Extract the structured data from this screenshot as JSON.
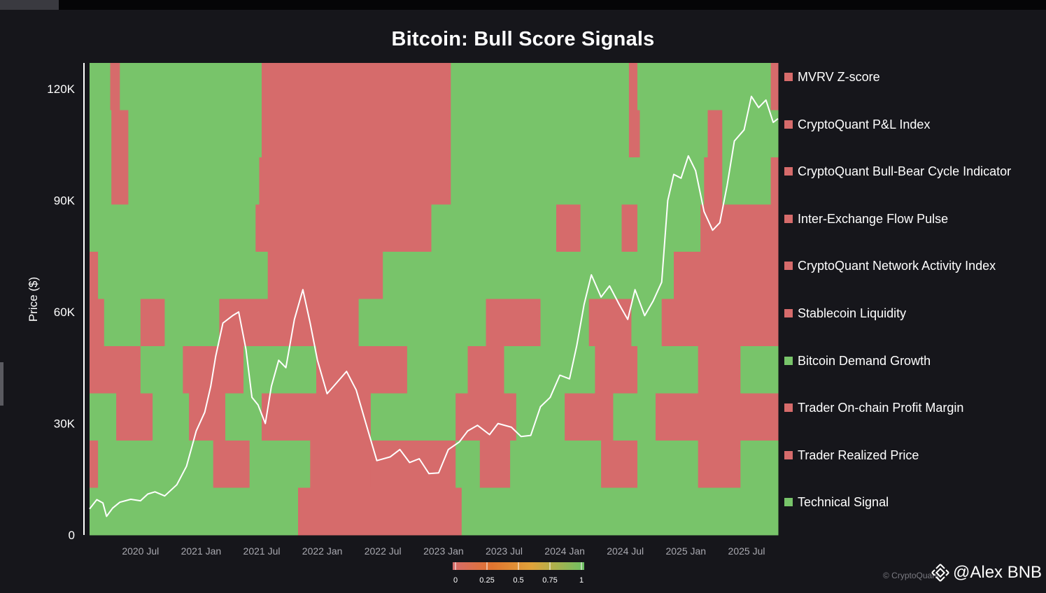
{
  "chart_data": {
    "type": "heatmap",
    "title": "Bitcoin: Bull Score Signals",
    "ylabel": "Price ($)",
    "xlabel": "",
    "y_ticks": [
      "0",
      "30K",
      "60K",
      "90K",
      "120K"
    ],
    "y_tick_values": [
      0,
      30000,
      60000,
      90000,
      120000
    ],
    "ylim": [
      0,
      127000
    ],
    "x_range": [
      2020.08,
      2025.76
    ],
    "x_ticks": [
      "2020 Jul",
      "2021 Jan",
      "2021 Jul",
      "2022 Jan",
      "2022 Jul",
      "2023 Jan",
      "2023 Jul",
      "2024 Jan",
      "2024 Jul",
      "2025 Jan",
      "2025 Jul"
    ],
    "x_tick_values": [
      2020.5,
      2021.0,
      2021.5,
      2022.0,
      2022.5,
      2023.0,
      2023.5,
      2024.0,
      2024.5,
      2025.0,
      2025.5
    ],
    "colorscale": {
      "ticks": [
        "0",
        "0.25",
        "0.5",
        "0.75",
        "1"
      ],
      "stops": [
        "#d66b6b",
        "#e0742f",
        "#e0a33a",
        "#6cc063"
      ]
    },
    "colors": {
      "bullish": "#78c46a",
      "bearish": "#d66b6b",
      "price_line": "#ffffff"
    },
    "series": [
      {
        "name": "MVRV Z-score",
        "state": 0,
        "segments": [
          [
            2020.08,
            2020.25,
            1
          ],
          [
            2020.25,
            2020.33,
            0
          ],
          [
            2020.33,
            2021.5,
            1
          ],
          [
            2021.5,
            2021.85,
            0
          ],
          [
            2021.85,
            2023.06,
            0
          ],
          [
            2023.06,
            2024.53,
            1
          ],
          [
            2024.53,
            2024.6,
            0
          ],
          [
            2024.6,
            2025.7,
            1
          ],
          [
            2025.7,
            2025.76,
            0
          ]
        ]
      },
      {
        "name": "CryptoQuant P&L Index",
        "state": 0,
        "segments": [
          [
            2020.08,
            2020.26,
            1
          ],
          [
            2020.26,
            2020.4,
            0
          ],
          [
            2020.4,
            2021.5,
            1
          ],
          [
            2021.5,
            2021.9,
            0
          ],
          [
            2021.9,
            2023.06,
            0
          ],
          [
            2023.06,
            2024.53,
            1
          ],
          [
            2024.53,
            2024.62,
            0
          ],
          [
            2024.62,
            2025.18,
            1
          ],
          [
            2025.18,
            2025.3,
            0
          ],
          [
            2025.3,
            2025.76,
            1
          ]
        ]
      },
      {
        "name": "CryptoQuant Bull-Bear Cycle Indicator",
        "state": 0,
        "segments": [
          [
            2020.08,
            2020.26,
            1
          ],
          [
            2020.26,
            2020.4,
            0
          ],
          [
            2020.4,
            2021.48,
            1
          ],
          [
            2021.48,
            2021.78,
            0
          ],
          [
            2021.78,
            2023.06,
            0
          ],
          [
            2023.06,
            2024.6,
            1
          ],
          [
            2024.6,
            2025.15,
            1
          ],
          [
            2025.15,
            2025.3,
            0
          ],
          [
            2025.3,
            2025.7,
            1
          ],
          [
            2025.7,
            2025.76,
            0
          ]
        ]
      },
      {
        "name": "Inter-Exchange Flow Pulse",
        "state": 0,
        "segments": [
          [
            2020.08,
            2021.45,
            1
          ],
          [
            2021.45,
            2021.7,
            0
          ],
          [
            2021.7,
            2022.9,
            0
          ],
          [
            2022.9,
            2023.93,
            1
          ],
          [
            2023.93,
            2024.13,
            0
          ],
          [
            2024.13,
            2024.47,
            1
          ],
          [
            2024.47,
            2024.6,
            0
          ],
          [
            2024.6,
            2025.12,
            1
          ],
          [
            2025.12,
            2025.76,
            0
          ]
        ]
      },
      {
        "name": "CryptoQuant Network Activity Index",
        "state": 0,
        "segments": [
          [
            2020.08,
            2020.15,
            0
          ],
          [
            2020.15,
            2020.4,
            1
          ],
          [
            2020.4,
            2021.55,
            1
          ],
          [
            2021.55,
            2021.8,
            0
          ],
          [
            2021.8,
            2022.5,
            0
          ],
          [
            2022.5,
            2023.3,
            1
          ],
          [
            2023.3,
            2024.1,
            1
          ],
          [
            2024.1,
            2024.45,
            1
          ],
          [
            2024.45,
            2024.9,
            1
          ],
          [
            2024.9,
            2025.76,
            0
          ]
        ]
      },
      {
        "name": "Stablecoin Liquidity",
        "state": 0,
        "segments": [
          [
            2020.08,
            2020.2,
            0
          ],
          [
            2020.2,
            2020.5,
            1
          ],
          [
            2020.5,
            2020.7,
            0
          ],
          [
            2020.7,
            2021.15,
            1
          ],
          [
            2021.15,
            2021.5,
            0
          ],
          [
            2021.5,
            2022.3,
            0
          ],
          [
            2022.3,
            2022.95,
            1
          ],
          [
            2022.95,
            2023.35,
            1
          ],
          [
            2023.35,
            2023.8,
            0
          ],
          [
            2023.8,
            2024.2,
            1
          ],
          [
            2024.2,
            2024.55,
            0
          ],
          [
            2024.55,
            2024.8,
            1
          ],
          [
            2024.8,
            2025.0,
            0
          ],
          [
            2025.0,
            2025.76,
            0
          ]
        ]
      },
      {
        "name": "Bitcoin Demand Growth",
        "state": 1,
        "segments": [
          [
            2020.08,
            2020.5,
            0
          ],
          [
            2020.5,
            2020.85,
            1
          ],
          [
            2020.85,
            2021.35,
            0
          ],
          [
            2021.35,
            2021.95,
            1
          ],
          [
            2021.95,
            2022.7,
            0
          ],
          [
            2022.7,
            2023.2,
            1
          ],
          [
            2023.2,
            2023.5,
            0
          ],
          [
            2023.5,
            2024.25,
            1
          ],
          [
            2024.25,
            2024.6,
            0
          ],
          [
            2024.6,
            2025.1,
            1
          ],
          [
            2025.1,
            2025.45,
            0
          ],
          [
            2025.45,
            2025.76,
            1
          ]
        ]
      },
      {
        "name": "Trader On-chain Profit Margin",
        "state": 0,
        "segments": [
          [
            2020.08,
            2020.3,
            1
          ],
          [
            2020.3,
            2020.6,
            0
          ],
          [
            2020.6,
            2020.9,
            1
          ],
          [
            2020.9,
            2021.2,
            0
          ],
          [
            2021.2,
            2021.5,
            1
          ],
          [
            2021.5,
            2021.85,
            0
          ],
          [
            2021.85,
            2022.4,
            0
          ],
          [
            2022.4,
            2023.1,
            1
          ],
          [
            2023.1,
            2023.6,
            0
          ],
          [
            2023.6,
            2024.0,
            1
          ],
          [
            2024.0,
            2024.4,
            0
          ],
          [
            2024.4,
            2024.75,
            1
          ],
          [
            2024.75,
            2025.0,
            0
          ],
          [
            2025.0,
            2025.3,
            0
          ],
          [
            2025.3,
            2025.76,
            0
          ]
        ]
      },
      {
        "name": "Trader Realized Price",
        "state": 0,
        "segments": [
          [
            2020.08,
            2020.15,
            0
          ],
          [
            2020.15,
            2021.1,
            1
          ],
          [
            2021.1,
            2021.4,
            0
          ],
          [
            2021.4,
            2021.9,
            1
          ],
          [
            2021.9,
            2022.4,
            0
          ],
          [
            2022.4,
            2023.1,
            0
          ],
          [
            2023.1,
            2023.3,
            1
          ],
          [
            2023.3,
            2023.55,
            0
          ],
          [
            2023.55,
            2024.3,
            1
          ],
          [
            2024.3,
            2024.6,
            0
          ],
          [
            2024.6,
            2025.1,
            1
          ],
          [
            2025.1,
            2025.45,
            0
          ],
          [
            2025.45,
            2025.76,
            1
          ]
        ]
      },
      {
        "name": "Technical Signal",
        "state": 1,
        "segments": [
          [
            2020.08,
            2020.25,
            1
          ],
          [
            2020.25,
            2021.8,
            1
          ],
          [
            2021.8,
            2022.0,
            0
          ],
          [
            2022.0,
            2023.15,
            0
          ],
          [
            2023.15,
            2025.76,
            1
          ]
        ]
      }
    ],
    "price_points": [
      [
        2020.08,
        7000
      ],
      [
        2020.14,
        9500
      ],
      [
        2020.19,
        8600
      ],
      [
        2020.22,
        5000
      ],
      [
        2020.27,
        7200
      ],
      [
        2020.33,
        8800
      ],
      [
        2020.42,
        9600
      ],
      [
        2020.5,
        9200
      ],
      [
        2020.56,
        11000
      ],
      [
        2020.62,
        11600
      ],
      [
        2020.7,
        10500
      ],
      [
        2020.8,
        13500
      ],
      [
        2020.88,
        18500
      ],
      [
        2020.96,
        28000
      ],
      [
        2021.03,
        33000
      ],
      [
        2021.08,
        40000
      ],
      [
        2021.12,
        48000
      ],
      [
        2021.18,
        57000
      ],
      [
        2021.26,
        59000
      ],
      [
        2021.31,
        60000
      ],
      [
        2021.37,
        50000
      ],
      [
        2021.42,
        37000
      ],
      [
        2021.47,
        35000
      ],
      [
        2021.53,
        30000
      ],
      [
        2021.58,
        40000
      ],
      [
        2021.64,
        47000
      ],
      [
        2021.7,
        45000
      ],
      [
        2021.77,
        58000
      ],
      [
        2021.84,
        66000
      ],
      [
        2021.9,
        57000
      ],
      [
        2021.96,
        47000
      ],
      [
        2022.04,
        38000
      ],
      [
        2022.12,
        41000
      ],
      [
        2022.2,
        44000
      ],
      [
        2022.28,
        39000
      ],
      [
        2022.36,
        30000
      ],
      [
        2022.45,
        20000
      ],
      [
        2022.56,
        21000
      ],
      [
        2022.64,
        23000
      ],
      [
        2022.72,
        19500
      ],
      [
        2022.8,
        20500
      ],
      [
        2022.88,
        16500
      ],
      [
        2022.96,
        16700
      ],
      [
        2023.04,
        23000
      ],
      [
        2023.13,
        25000
      ],
      [
        2023.2,
        28000
      ],
      [
        2023.28,
        29500
      ],
      [
        2023.38,
        27000
      ],
      [
        2023.45,
        30000
      ],
      [
        2023.56,
        29000
      ],
      [
        2023.64,
        26500
      ],
      [
        2023.72,
        26800
      ],
      [
        2023.8,
        34500
      ],
      [
        2023.88,
        37000
      ],
      [
        2023.96,
        43000
      ],
      [
        2024.04,
        42000
      ],
      [
        2024.1,
        51000
      ],
      [
        2024.16,
        62000
      ],
      [
        2024.22,
        70000
      ],
      [
        2024.3,
        64000
      ],
      [
        2024.37,
        67000
      ],
      [
        2024.45,
        62000
      ],
      [
        2024.52,
        58000
      ],
      [
        2024.58,
        66000
      ],
      [
        2024.66,
        59000
      ],
      [
        2024.73,
        63000
      ],
      [
        2024.8,
        68000
      ],
      [
        2024.85,
        90000
      ],
      [
        2024.9,
        97000
      ],
      [
        2024.96,
        96000
      ],
      [
        2025.02,
        102000
      ],
      [
        2025.08,
        98000
      ],
      [
        2025.15,
        87000
      ],
      [
        2025.22,
        82000
      ],
      [
        2025.28,
        84000
      ],
      [
        2025.34,
        94000
      ],
      [
        2025.4,
        106000
      ],
      [
        2025.48,
        109000
      ],
      [
        2025.54,
        118000
      ],
      [
        2025.6,
        115000
      ],
      [
        2025.66,
        117000
      ],
      [
        2025.72,
        111000
      ],
      [
        2025.76,
        112000
      ]
    ]
  },
  "watermark": "© CryptoQuant",
  "credit": {
    "handle": "@Alex BNB"
  }
}
